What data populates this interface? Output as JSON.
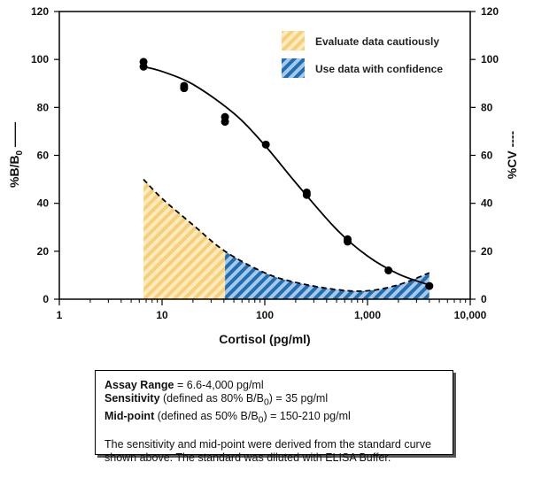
{
  "chart_data": {
    "type": "line",
    "xlabel": "Cortisol (pg/ml)",
    "ylabel_left": "%B/B",
    "ylabel_left_sub": "0",
    "ylabel_left_suffix": " ——",
    "ylabel_right": "%CV ----",
    "x_scale": "log",
    "xlim": [
      1,
      10000
    ],
    "ylim": [
      0,
      120
    ],
    "x_ticks": [
      {
        "v": 1,
        "label": "1"
      },
      {
        "v": 10,
        "label": "10"
      },
      {
        "v": 100,
        "label": "100"
      },
      {
        "v": 1000,
        "label": "1,000"
      },
      {
        "v": 10000,
        "label": "10,000"
      }
    ],
    "y_ticks": [
      "0",
      "20",
      "40",
      "60",
      "80",
      "100",
      "120"
    ],
    "grid": false,
    "legend_position": "top-right",
    "legend": [
      {
        "label": "Evaluate data cautiously",
        "color": "#f5c96a",
        "pattern": "hatched"
      },
      {
        "label": "Use data with confidence",
        "color": "#1f6fb5",
        "pattern": "hatched"
      }
    ],
    "series": [
      {
        "type": "scatter",
        "points": [
          [
            6.6,
            99
          ],
          [
            6.6,
            97
          ],
          [
            16.4,
            89
          ],
          [
            16.4,
            88
          ],
          [
            41,
            76
          ],
          [
            41,
            74
          ],
          [
            102.4,
            64.5
          ],
          [
            256,
            44.5
          ],
          [
            256,
            43.5
          ],
          [
            640,
            25
          ],
          [
            640,
            24
          ],
          [
            1600,
            12
          ],
          [
            4000,
            5.5
          ]
        ]
      },
      {
        "type": "line",
        "style": "solid",
        "axis": "left",
        "points": [
          [
            6.6,
            97
          ],
          [
            10,
            95
          ],
          [
            20,
            89.6
          ],
          [
            50,
            77.5
          ],
          [
            100,
            64.2
          ],
          [
            200,
            48.6
          ],
          [
            500,
            29.1
          ],
          [
            1000,
            18
          ],
          [
            2000,
            10.5
          ],
          [
            4000,
            5.9
          ]
        ]
      },
      {
        "type": "area",
        "style": "dashed",
        "axis": "right",
        "points": [
          [
            6.6,
            50
          ],
          [
            10,
            42
          ],
          [
            20,
            31
          ],
          [
            41,
            20
          ],
          [
            100,
            11
          ],
          [
            200,
            7
          ],
          [
            500,
            4
          ],
          [
            1000,
            3.5
          ],
          [
            2000,
            6
          ],
          [
            4000,
            11
          ]
        ],
        "split_x": 41
      }
    ]
  },
  "info": {
    "range_label": "Assay Range",
    "range_value": " = 6.6-4,000 pg/ml",
    "sens_label": "Sensitivity",
    "sens_pre": " (defined as 80% B/B",
    "sens_sub": "0",
    "sens_post": ") = 35 pg/ml",
    "mid_label": "Mid-point",
    "mid_pre": " (defined as 50% B/B",
    "mid_sub": "0",
    "mid_post": ") = 150-210 pg/ml",
    "note": "The sensitivity and mid-point were derived from the standard curve shown above. The standard was diluted with ELISA Buffer."
  }
}
